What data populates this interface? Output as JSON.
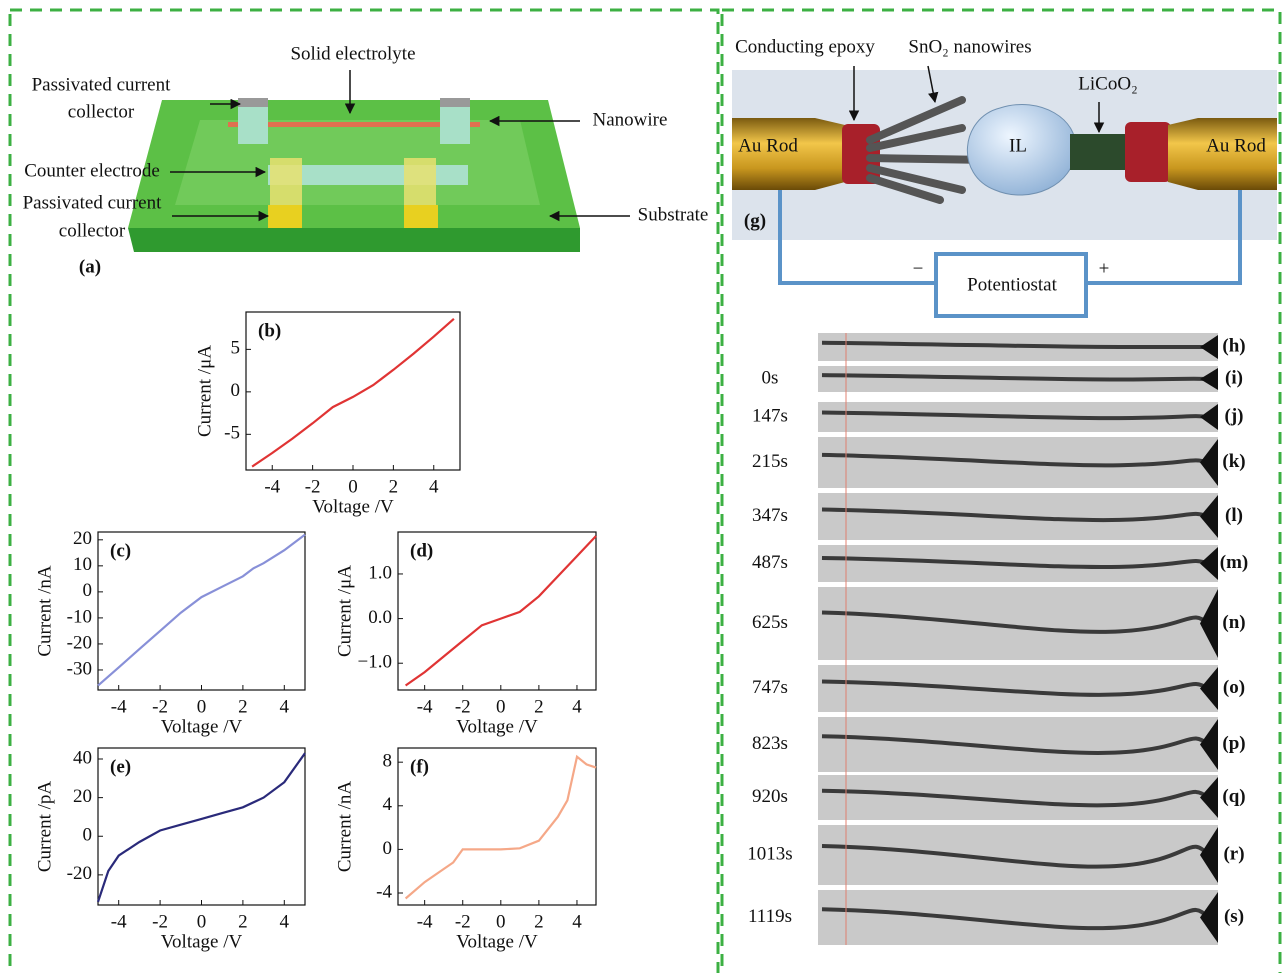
{
  "panel_a": {
    "solid_electrolyte": "Solid electrolyte",
    "passivated_top_1": "Passivated current",
    "passivated_top_2": "collector",
    "nanowire": "Nanowire",
    "counter_electrode": "Counter electrode",
    "passivated_bottom_1": "Passivated current",
    "passivated_bottom_2": "collector",
    "substrate": "Substrate",
    "panel": "(a)"
  },
  "panel_g": {
    "conducting_epoxy": "Conducting epoxy",
    "nanowires": "SnO₂ nanowires",
    "licoo2": "LiCoO₂",
    "au_rod_left": "Au Rod",
    "il": "IL",
    "au_rod_right": "Au Rod",
    "panel": "(g)",
    "minus": "−",
    "plus": "+",
    "potentiostat": "Potentiostat"
  },
  "timelapse": {
    "frames": [
      {
        "label": "(h)"
      },
      {
        "time": "0s",
        "label": "(i)"
      },
      {
        "time": "147s",
        "label": "(j)"
      },
      {
        "time": "215s",
        "label": "(k)"
      },
      {
        "time": "347s",
        "label": "(l)"
      },
      {
        "time": "487s",
        "label": "(m)"
      },
      {
        "time": "625s",
        "label": "(n)"
      },
      {
        "time": "747s",
        "label": "(o)"
      },
      {
        "time": "823s",
        "label": "(p)"
      },
      {
        "time": "920s",
        "label": "(q)"
      },
      {
        "time": "1013s",
        "label": "(r)"
      },
      {
        "time": "1119s",
        "label": "(s)"
      }
    ]
  },
  "chart_data": [
    {
      "type": "line",
      "panel": "(b)",
      "xlabel": "Voltage /V",
      "ylabel": "Current /μA",
      "color": "#e03434",
      "x": [
        -5,
        -4,
        -3,
        -2,
        -1,
        0,
        1,
        2,
        3,
        4,
        5
      ],
      "values": [
        -8.8,
        -7.2,
        -5.5,
        -3.7,
        -1.8,
        -0.6,
        0.8,
        2.6,
        4.5,
        6.5,
        8.6
      ],
      "xlim": [
        -5.3,
        5.3
      ],
      "ylim": [
        -9.2,
        9.4
      ],
      "xticks": [
        -4,
        -2,
        0,
        2,
        4
      ],
      "yticks": [
        -5,
        0,
        5
      ]
    },
    {
      "type": "line",
      "panel": "(c)",
      "xlabel": "Voltage /V",
      "ylabel": "Current /nA",
      "color": "#8890d8",
      "x": [
        -5,
        -4,
        -3,
        -2,
        -1,
        0,
        1,
        2,
        2.5,
        3,
        4,
        5
      ],
      "values": [
        -36,
        -29,
        -22,
        -15,
        -8,
        -2,
        2,
        6,
        9,
        11,
        16,
        22
      ],
      "xlim": [
        -5,
        5
      ],
      "ylim": [
        -37.7,
        23
      ],
      "xticks": [
        -4,
        -2,
        0,
        2,
        4
      ],
      "yticks": [
        -30,
        -20,
        -10,
        0,
        10,
        20
      ]
    },
    {
      "type": "line",
      "panel": "(d)",
      "xlabel": "Voltage /V",
      "ylabel": "Current /μA",
      "color": "#e03434",
      "x": [
        -5,
        -4,
        -3,
        -2,
        -1,
        0,
        1,
        2,
        3,
        4,
        5
      ],
      "values": [
        -1.5,
        -1.2,
        -0.85,
        -0.5,
        -0.15,
        0,
        0.15,
        0.5,
        0.95,
        1.4,
        1.85
      ],
      "xlim": [
        -5.4,
        5.0
      ],
      "ylim": [
        -1.6,
        1.94
      ],
      "xticks": [
        -4,
        -2,
        0,
        2,
        4
      ],
      "yticks": [
        {
          "value": -1,
          "label": "−1.0"
        },
        {
          "value": 0,
          "label": "0.0"
        },
        {
          "value": 1,
          "label": "1.0"
        }
      ]
    },
    {
      "type": "line",
      "panel": "(e)",
      "xlabel": "Voltage /V",
      "ylabel": "Current /pA",
      "color": "#2a2a7a",
      "x": [
        -5,
        -4.5,
        -4,
        -3,
        -2,
        -1,
        0,
        1,
        2,
        3,
        4,
        5
      ],
      "values": [
        -34,
        -18,
        -10,
        -3,
        3,
        6,
        9,
        12,
        15,
        20,
        28,
        43
      ],
      "xlim": [
        -5,
        5
      ],
      "ylim": [
        -35.6,
        45.7
      ],
      "xticks": [
        -4,
        -2,
        0,
        2,
        4
      ],
      "yticks": [
        -20,
        0,
        20,
        40
      ]
    },
    {
      "type": "line",
      "panel": "(f)",
      "xlabel": "Voltage /V",
      "ylabel": "Current /nA",
      "color": "#f5a888",
      "x": [
        -5,
        -4,
        -3,
        -2.5,
        -2,
        -1,
        0,
        1,
        2,
        3,
        3.5,
        4,
        4.5,
        5
      ],
      "values": [
        -4.5,
        -3,
        -1.8,
        -1.2,
        0,
        0,
        0,
        0.1,
        0.8,
        3,
        4.5,
        8.5,
        7.8,
        7.5
      ],
      "xlim": [
        -5.4,
        5.0
      ],
      "ylim": [
        -5.1,
        9.3
      ],
      "xticks": [
        -4,
        -2,
        0,
        2,
        4
      ],
      "yticks": [
        -4,
        0,
        4,
        8
      ]
    }
  ]
}
